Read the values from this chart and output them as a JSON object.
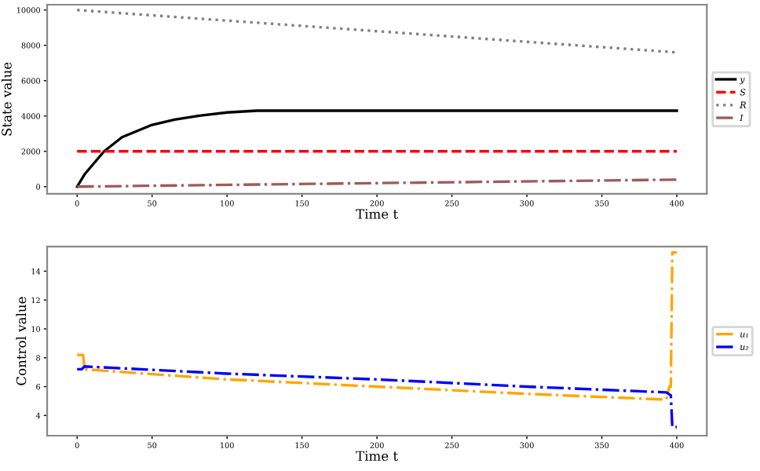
{
  "chart_data": [
    {
      "type": "line",
      "ylabel": "State value",
      "xlabel": "Time t",
      "xlim": [
        -20,
        420
      ],
      "ylim": [
        -400,
        10300
      ],
      "xticks": [
        0,
        50,
        100,
        150,
        200,
        250,
        300,
        350,
        400
      ],
      "yticks": [
        0,
        2000,
        4000,
        6000,
        8000,
        10000
      ],
      "legend": "right",
      "grid": false,
      "series": [
        {
          "name": "y",
          "color": "#000000",
          "line_style": "solid",
          "x": [
            0,
            5,
            10,
            18,
            30,
            50,
            65,
            80,
            100,
            120,
            150,
            200,
            300,
            400
          ],
          "values": [
            0,
            700,
            1200,
            2000,
            2800,
            3500,
            3800,
            4000,
            4200,
            4300,
            4300,
            4300,
            4300,
            4300
          ]
        },
        {
          "name": "S",
          "color": "#ff0000",
          "line_style": "dashed",
          "x": [
            0,
            400
          ],
          "values": [
            2000,
            2000
          ]
        },
        {
          "name": "R",
          "color": "#808080",
          "line_style": "dotted",
          "x": [
            0,
            400
          ],
          "values": [
            10000,
            7600
          ]
        },
        {
          "name": "I",
          "color": "#a05a5a",
          "line_style": "dashdot",
          "x": [
            0,
            400
          ],
          "values": [
            0,
            400
          ]
        }
      ]
    },
    {
      "type": "line",
      "ylabel": "Control value",
      "xlabel": "Time t",
      "xlim": [
        -20,
        420
      ],
      "ylim": [
        2.6,
        15.7
      ],
      "xticks": [
        0,
        50,
        100,
        150,
        200,
        250,
        300,
        350,
        400
      ],
      "yticks": [
        4,
        6,
        8,
        10,
        12,
        14
      ],
      "legend": "right",
      "grid": false,
      "series": [
        {
          "name": "u₁",
          "color": "#ffa500",
          "line_style": "dashdot",
          "x": [
            0,
            4,
            5,
            100,
            200,
            300,
            393,
            395,
            396,
            397,
            400
          ],
          "values": [
            8.2,
            8.2,
            7.2,
            6.5,
            6.0,
            5.5,
            5.1,
            6.0,
            6.0,
            15.3,
            15.3
          ]
        },
        {
          "name": "u₂",
          "color": "#0000ff",
          "line_style": "dashdot",
          "x": [
            0,
            3,
            5,
            100,
            200,
            300,
            393,
            396,
            397,
            400
          ],
          "values": [
            7.2,
            7.2,
            7.4,
            6.9,
            6.5,
            6.0,
            5.6,
            5.4,
            3.2,
            3.2
          ]
        }
      ]
    }
  ]
}
